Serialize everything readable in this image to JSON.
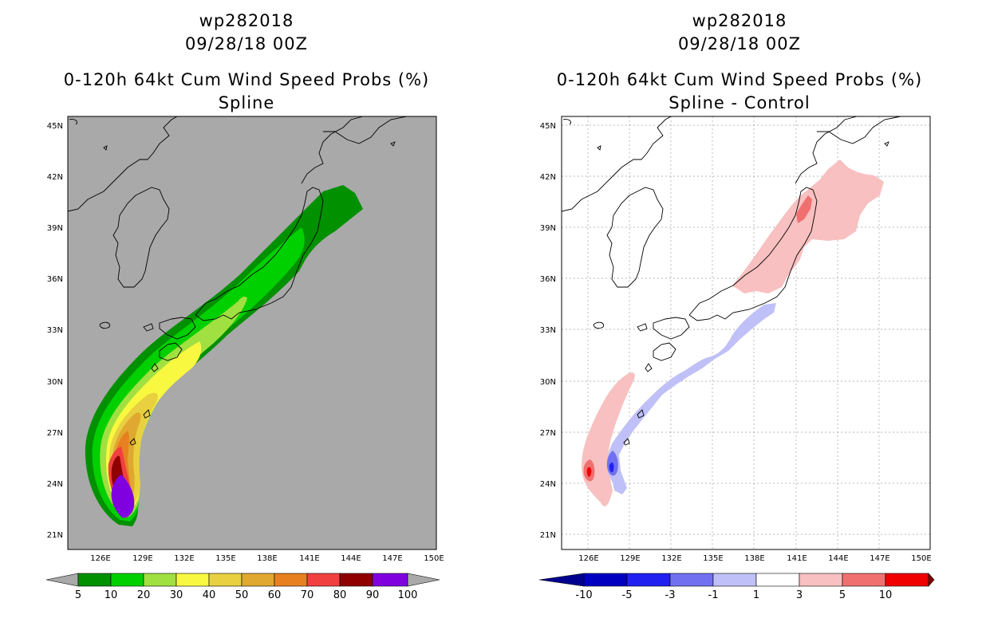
{
  "left": {
    "title_line1": "wp282018",
    "title_line2": "09/28/18 00Z",
    "title_line3": "0-120h 64kt Cum Wind Speed Probs (%)",
    "title_line4": "Spline",
    "background": "#a9a9a9",
    "colorbar": {
      "colors": [
        "#009000",
        "#00d000",
        "#a0e040",
        "#f8f840",
        "#e8d040",
        "#e0a830",
        "#e88020",
        "#f04040",
        "#900000",
        "#8000e0"
      ],
      "labels": [
        "5",
        "10",
        "20",
        "30",
        "40",
        "50",
        "60",
        "70",
        "80",
        "90",
        "100"
      ],
      "end_color": "#a9a9a9"
    }
  },
  "right": {
    "title_line1": "wp282018",
    "title_line2": "09/28/18 00Z",
    "title_line3": "0-120h 64kt Cum Wind Speed Probs (%)",
    "title_line4": "Spline - Control",
    "background": "#ffffff",
    "colorbar": {
      "colors": [
        "#0000c0",
        "#2020f0",
        "#7070f0",
        "#c0c0f8",
        "#ffffff",
        "#f8c0c0",
        "#f07070",
        "#f00000"
      ],
      "labels": [
        "-10",
        "-5",
        "-3",
        "-1",
        "1",
        "3",
        "5",
        "10"
      ],
      "low_end_color": "#000090",
      "high_end_color": "#800000"
    }
  },
  "lat_labels": [
    "45N",
    "42N",
    "39N",
    "36N",
    "33N",
    "30N",
    "27N",
    "24N",
    "21N"
  ],
  "lon_labels": [
    "126E",
    "129E",
    "132E",
    "135E",
    "138E",
    "141E",
    "144E",
    "147E",
    "150E"
  ]
}
